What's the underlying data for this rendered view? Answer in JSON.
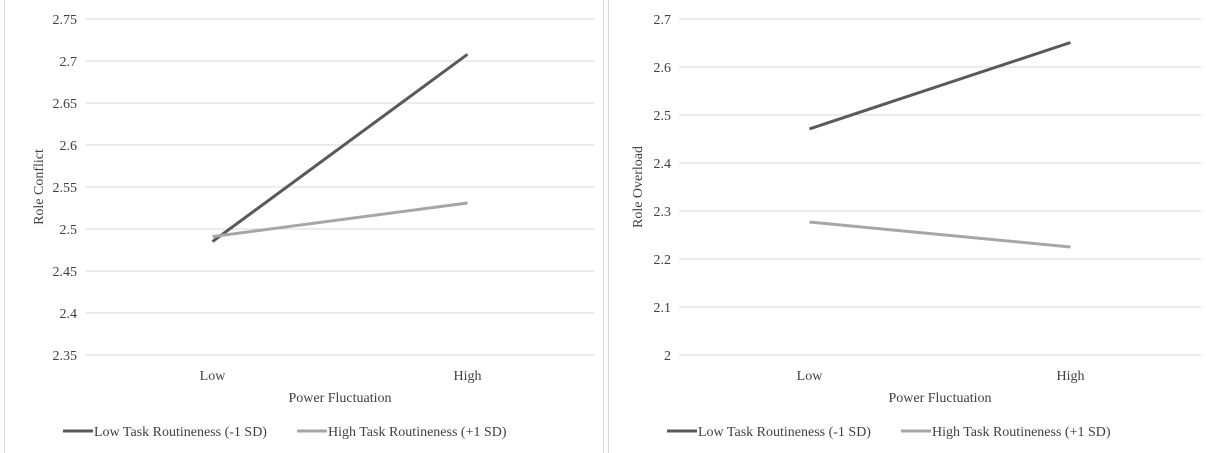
{
  "chart_data": [
    {
      "type": "line",
      "xlabel": "Power Fluctuation",
      "ylabel": "Role Conflict",
      "categories": [
        "Low",
        "High"
      ],
      "ylim": [
        2.35,
        2.75
      ],
      "yticks": [
        "2.35",
        "2.4",
        "2.45",
        "2.5",
        "2.55",
        "2.6",
        "2.65",
        "2.7",
        "2.75"
      ],
      "grid": true,
      "legend": "bottom",
      "series": [
        {
          "name": "Low Task Routineness (-1 SD)",
          "values": [
            2.485,
            2.708
          ],
          "color": "#595959"
        },
        {
          "name": "High Task Routineness (+1 SD)",
          "values": [
            2.491,
            2.531
          ],
          "color": "#a6a6a6"
        }
      ]
    },
    {
      "type": "line",
      "xlabel": "Power Fluctuation",
      "ylabel": "Role Overload",
      "categories": [
        "Low",
        "High"
      ],
      "ylim": [
        2.0,
        2.7
      ],
      "yticks": [
        "2",
        "2.1",
        "2.2",
        "2.3",
        "2.4",
        "2.5",
        "2.6",
        "2.7"
      ],
      "grid": true,
      "legend": "bottom",
      "series": [
        {
          "name": "Low Task Routineness (-1 SD)",
          "values": [
            2.471,
            2.651
          ],
          "color": "#595959"
        },
        {
          "name": "High Task Routineness (+1 SD)",
          "values": [
            2.277,
            2.225
          ],
          "color": "#a6a6a6"
        }
      ]
    }
  ]
}
